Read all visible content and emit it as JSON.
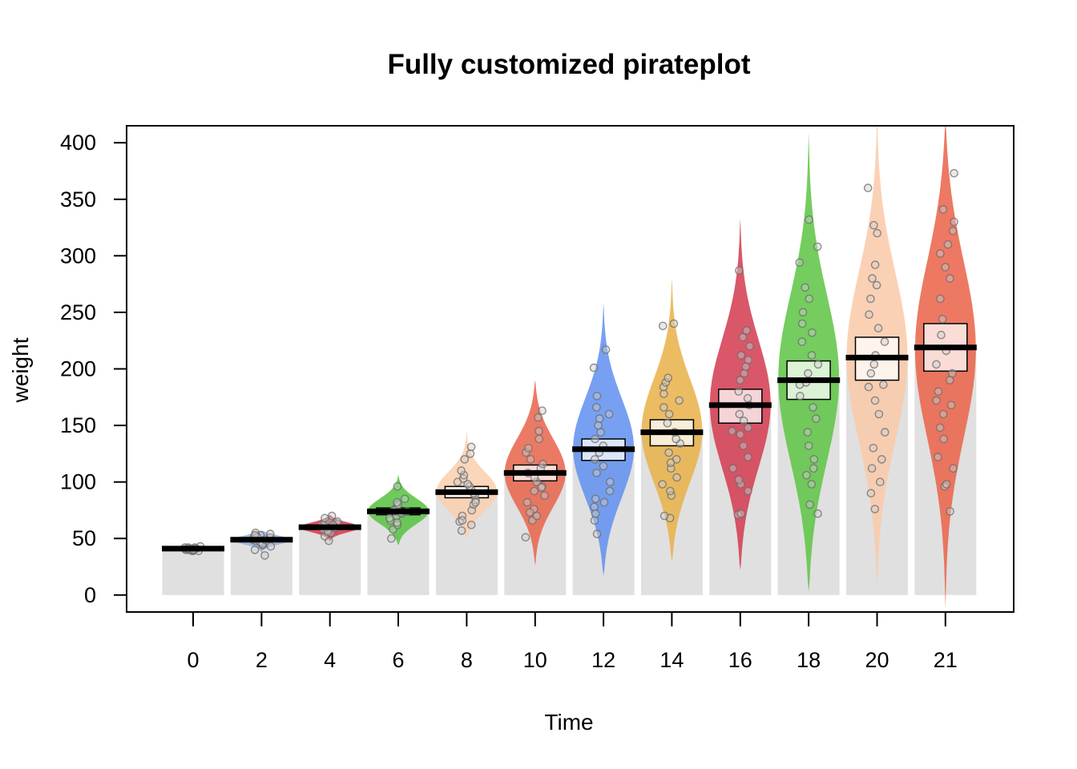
{
  "chart_data": {
    "type": "pirateplot",
    "title": "Fully customized pirateplot",
    "xlabel": "Time",
    "ylabel": "weight",
    "ylim": [
      -15,
      415
    ],
    "yticks": [
      0,
      50,
      100,
      150,
      200,
      250,
      300,
      350,
      400
    ],
    "categories": [
      "0",
      "2",
      "4",
      "6",
      "8",
      "10",
      "12",
      "14",
      "16",
      "18",
      "20",
      "21"
    ],
    "means": [
      41,
      49,
      60,
      74,
      91,
      108,
      129,
      144,
      168,
      190,
      210,
      219
    ],
    "inference_bands": [
      {
        "lower": 40.5,
        "upper": 42.5
      },
      {
        "lower": 47.5,
        "upper": 50.5
      },
      {
        "lower": 58,
        "upper": 62
      },
      {
        "lower": 71,
        "upper": 77
      },
      {
        "lower": 86,
        "upper": 96
      },
      {
        "lower": 101,
        "upper": 115
      },
      {
        "lower": 119,
        "upper": 138
      },
      {
        "lower": 132,
        "upper": 155
      },
      {
        "lower": 152,
        "upper": 182
      },
      {
        "lower": 173,
        "upper": 207
      },
      {
        "lower": 190,
        "upper": 228
      },
      {
        "lower": 198,
        "upper": 240
      }
    ],
    "violin_ranges": [
      {
        "min": 37,
        "max": 44
      },
      {
        "min": 36,
        "max": 57
      },
      {
        "min": 47,
        "max": 71
      },
      {
        "min": 44,
        "max": 106
      },
      {
        "min": 50,
        "max": 145
      },
      {
        "min": 26,
        "max": 190
      },
      {
        "min": 17,
        "max": 258
      },
      {
        "min": 30,
        "max": 280
      },
      {
        "min": 22,
        "max": 333
      },
      {
        "min": 3,
        "max": 408
      },
      {
        "min": 10,
        "max": 420
      },
      {
        "min": -12,
        "max": 418
      }
    ],
    "points": [
      [
        39,
        41,
        40,
        42,
        39,
        40,
        41,
        43,
        42,
        41,
        40,
        39,
        41,
        42,
        40,
        41
      ],
      [
        35,
        40,
        44,
        46,
        48,
        49,
        50,
        51,
        52,
        53,
        54,
        55,
        47,
        45,
        49,
        51,
        53,
        43
      ],
      [
        48,
        52,
        55,
        57,
        58,
        59,
        60,
        61,
        62,
        63,
        64,
        65,
        66,
        68,
        70,
        56,
        60,
        62
      ],
      [
        50,
        58,
        62,
        66,
        68,
        70,
        72,
        73,
        74,
        76,
        78,
        80,
        82,
        85,
        96,
        64,
        75
      ],
      [
        57,
        62,
        65,
        70,
        75,
        80,
        84,
        88,
        90,
        93,
        96,
        98,
        100,
        103,
        106,
        110,
        120,
        125,
        131,
        66,
        82
      ],
      [
        51,
        66,
        70,
        76,
        82,
        88,
        92,
        96,
        100,
        104,
        108,
        112,
        116,
        120,
        126,
        130,
        138,
        145,
        157,
        163,
        73,
        95
      ],
      [
        54,
        66,
        72,
        78,
        82,
        92,
        100,
        108,
        114,
        120,
        126,
        132,
        138,
        144,
        150,
        156,
        160,
        166,
        176,
        201,
        217,
        85
      ],
      [
        68,
        70,
        88,
        92,
        98,
        104,
        112,
        120,
        126,
        134,
        138,
        144,
        152,
        160,
        166,
        172,
        178,
        184,
        188,
        192,
        238,
        240,
        117
      ],
      [
        71,
        72,
        92,
        98,
        102,
        112,
        122,
        132,
        142,
        148,
        154,
        160,
        168,
        174,
        180,
        190,
        196,
        202,
        208,
        212,
        220,
        228,
        234,
        287,
        145
      ],
      [
        72,
        80,
        98,
        106,
        112,
        120,
        132,
        144,
        156,
        166,
        176,
        188,
        196,
        204,
        212,
        224,
        232,
        240,
        250,
        262,
        272,
        294,
        308,
        332,
        186
      ],
      [
        76,
        90,
        100,
        112,
        120,
        130,
        144,
        160,
        172,
        186,
        196,
        204,
        212,
        224,
        236,
        248,
        262,
        274,
        280,
        292,
        320,
        327,
        360,
        184
      ],
      [
        74,
        96,
        98,
        112,
        122,
        138,
        148,
        160,
        172,
        180,
        190,
        196,
        204,
        216,
        230,
        244,
        262,
        280,
        290,
        302,
        310,
        322,
        330,
        341,
        373,
        168
      ]
    ],
    "colors": {
      "violins": [
        "#4d4d4d",
        "#8fb2dd",
        "#d9364b",
        "#55c23e",
        "#f9cfae",
        "#e8634a",
        "#5f8ff0",
        "#e9b048",
        "#d23a4e",
        "#5cc442",
        "#fac9a8",
        "#ea6148"
      ],
      "bar": "#e0e0e0",
      "mean_line": "#000000",
      "band_fill": "#ffffff",
      "point_stroke": "#6b6b6b",
      "point_fill": "#cfcfcf"
    },
    "grid": false,
    "legend": "none"
  }
}
